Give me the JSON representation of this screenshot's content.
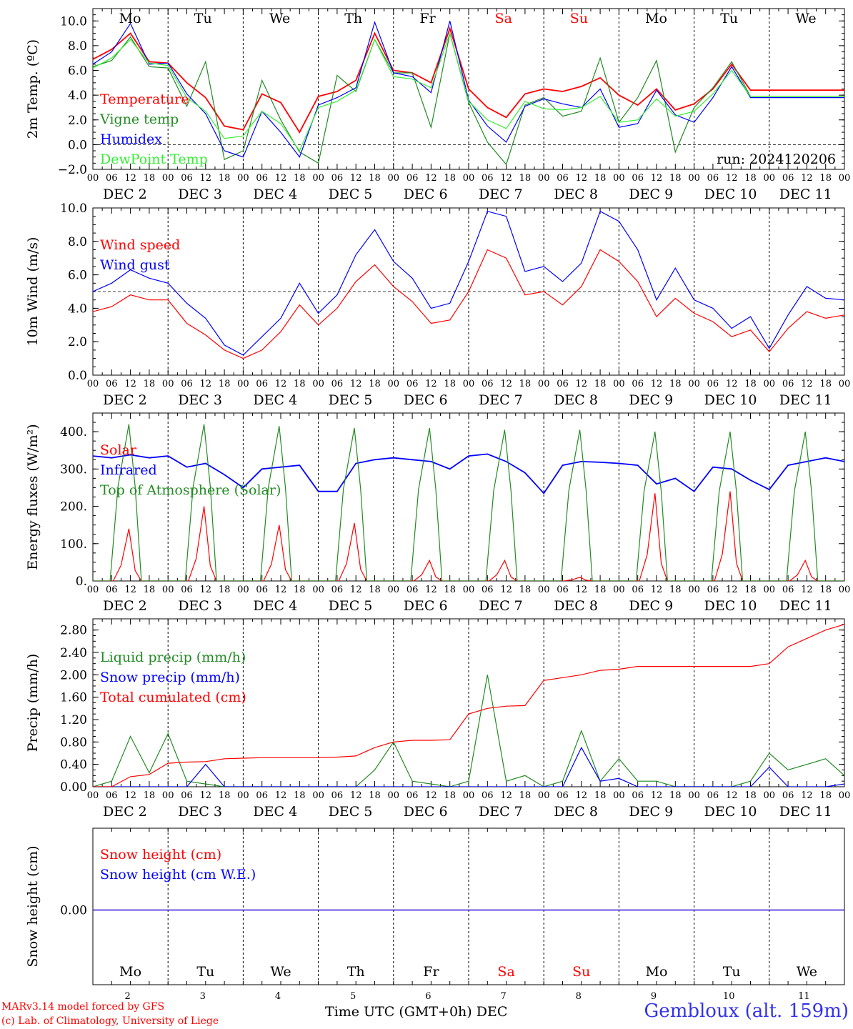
{
  "run_label": "run: 2024120206",
  "x_axis_title": "Time UTC (GMT+0h)",
  "month": "DEC",
  "credits": [
    "MARv3.14 model forced by GFS",
    "(c) Lab. of Climatology, University of Liege"
  ],
  "station": "Gembloux (alt. 159m)",
  "colors": {
    "red": "#ff0000",
    "dark_green": "#228b22",
    "blue": "#0000ff",
    "light_green": "#33ee33"
  },
  "days": [
    {
      "abbr": "Mo",
      "date": "2",
      "weekend": false
    },
    {
      "abbr": "Tu",
      "date": "3",
      "weekend": false
    },
    {
      "abbr": "We",
      "date": "4",
      "weekend": false
    },
    {
      "abbr": "Th",
      "date": "5",
      "weekend": false
    },
    {
      "abbr": "Fr",
      "date": "6",
      "weekend": false
    },
    {
      "abbr": "Sa",
      "date": "7",
      "weekend": true
    },
    {
      "abbr": "Su",
      "date": "8",
      "weekend": true
    },
    {
      "abbr": "Mo",
      "date": "9",
      "weekend": false
    },
    {
      "abbr": "Tu",
      "date": "10",
      "weekend": false
    },
    {
      "abbr": "We",
      "date": "11",
      "weekend": false
    }
  ],
  "hour_ticks": [
    "00",
    "06",
    "12",
    "18"
  ],
  "chart_data": [
    {
      "type": "line",
      "ylabel": "2m Temp. (ºC)",
      "ylim": [
        -2,
        11
      ],
      "yticks": [
        -2,
        0,
        2,
        4,
        6,
        8,
        10
      ],
      "ytick_labels": [
        "−2.0",
        "0.0",
        "2.0",
        "4.0",
        "6.0",
        "8.0",
        "10.0"
      ],
      "reference_line": 0,
      "x": [
        0,
        6,
        12,
        18,
        24,
        30,
        36,
        42,
        48,
        54,
        60,
        66,
        72,
        78,
        84,
        90,
        96,
        102,
        108,
        114,
        120,
        126,
        132,
        138,
        144,
        150,
        156,
        162,
        168,
        174,
        180,
        186,
        192,
        198,
        204,
        210,
        216,
        222,
        228,
        234,
        240
      ],
      "series": [
        {
          "name": "Temperature",
          "color": "#ff0000",
          "values": [
            6.9,
            7.7,
            9.0,
            6.7,
            6.6,
            5.0,
            3.8,
            1.5,
            1.2,
            4.1,
            3.4,
            1.0,
            3.9,
            4.3,
            5.2,
            9.0,
            6.0,
            5.8,
            5.0,
            9.4,
            4.5,
            3.0,
            2.2,
            4.1,
            4.5,
            4.3,
            4.7,
            5.4,
            4.0,
            3.2,
            4.5,
            2.8,
            3.3,
            4.5,
            6.5,
            4.4,
            4.4,
            4.4,
            4.4,
            4.4,
            4.4
          ]
        },
        {
          "name": "Vigne temp",
          "color": "#228b22",
          "values": [
            6.3,
            6.8,
            8.7,
            6.3,
            6.2,
            3.1,
            6.7,
            -1.2,
            -0.5,
            5.2,
            2.0,
            -0.6,
            -1.5,
            5.6,
            4.3,
            8.5,
            5.8,
            5.8,
            1.4,
            9.0,
            3.4,
            0.2,
            -1.6,
            3.2,
            3.8,
            2.3,
            2.7,
            7.0,
            1.8,
            3.8,
            6.8,
            -0.6,
            3.0,
            4.6,
            6.7,
            3.9,
            3.9,
            3.9,
            3.9,
            3.9,
            3.9
          ]
        },
        {
          "name": "Humidex",
          "color": "#0000ff",
          "values": [
            6.5,
            7.5,
            9.8,
            6.5,
            6.6,
            4.1,
            2.5,
            -0.5,
            -1.0,
            2.7,
            1.0,
            -1.0,
            3.2,
            3.8,
            4.6,
            9.9,
            5.8,
            5.5,
            4.2,
            10.0,
            3.6,
            1.5,
            0.2,
            3.1,
            3.7,
            3.3,
            3.0,
            4.5,
            1.4,
            1.7,
            4.4,
            2.4,
            1.8,
            3.8,
            6.3,
            3.8,
            3.8,
            3.8,
            3.8,
            3.8,
            3.8
          ]
        },
        {
          "name": "DewPoint Temp",
          "color": "#33ee33",
          "values": [
            6.2,
            7.0,
            8.5,
            6.6,
            6.4,
            3.8,
            2.7,
            0.5,
            0.7,
            2.7,
            1.7,
            -0.5,
            3.0,
            3.5,
            4.4,
            8.5,
            5.5,
            5.3,
            4.6,
            9.0,
            3.5,
            2.0,
            1.3,
            3.5,
            2.9,
            2.8,
            3.0,
            3.9,
            1.8,
            2.0,
            3.7,
            2.3,
            2.7,
            4.1,
            6.0,
            3.9,
            3.9,
            3.9,
            3.9,
            3.9,
            3.9
          ]
        }
      ]
    },
    {
      "type": "line",
      "ylabel": "10m Wind (m/s)",
      "ylim": [
        0,
        10
      ],
      "yticks": [
        0,
        2,
        4,
        6,
        8,
        10
      ],
      "ytick_labels": [
        "0.0",
        "2.0",
        "4.0",
        "6.0",
        "8.0",
        "10.0"
      ],
      "reference_line": 5,
      "x": [
        0,
        6,
        12,
        18,
        24,
        30,
        36,
        42,
        48,
        54,
        60,
        66,
        72,
        78,
        84,
        90,
        96,
        102,
        108,
        114,
        120,
        126,
        132,
        138,
        144,
        150,
        156,
        162,
        168,
        174,
        180,
        186,
        192,
        198,
        204,
        210,
        216,
        222,
        228,
        234,
        240
      ],
      "series": [
        {
          "name": "Wind speed",
          "color": "#ff0000",
          "values": [
            3.8,
            4.1,
            4.8,
            4.5,
            4.5,
            3.1,
            2.4,
            1.5,
            1.0,
            1.5,
            2.6,
            4.2,
            3.0,
            4.0,
            5.6,
            6.6,
            5.3,
            4.4,
            3.1,
            3.3,
            5.0,
            7.5,
            7.0,
            4.8,
            5.0,
            4.2,
            5.3,
            7.5,
            6.8,
            5.6,
            3.5,
            4.6,
            3.7,
            3.2,
            2.3,
            2.7,
            1.4,
            2.8,
            3.8,
            3.4,
            3.6
          ]
        },
        {
          "name": "Wind gust",
          "color": "#0000ff",
          "values": [
            5.0,
            5.5,
            6.3,
            5.8,
            5.5,
            4.3,
            3.4,
            1.8,
            1.2,
            2.3,
            3.4,
            5.5,
            3.7,
            4.8,
            7.2,
            8.7,
            6.8,
            5.8,
            4.0,
            4.3,
            6.8,
            9.8,
            9.5,
            6.2,
            6.5,
            5.6,
            6.7,
            9.8,
            9.2,
            7.5,
            4.5,
            6.4,
            4.5,
            4.0,
            2.8,
            3.5,
            1.6,
            3.6,
            5.3,
            4.6,
            4.5
          ]
        }
      ]
    },
    {
      "type": "line",
      "ylabel": "Energy fluxes (W/m²)",
      "ylim": [
        0,
        450
      ],
      "yticks": [
        0,
        100,
        200,
        300,
        400
      ],
      "ytick_labels": [
        "0.",
        "100.",
        "200.",
        "300.",
        "400."
      ],
      "series": [
        {
          "name": "Solar",
          "color": "#ff0000",
          "peaks": [
            140,
            200,
            150,
            155,
            55,
            55,
            10,
            235,
            240,
            55
          ]
        },
        {
          "name": "Infrared",
          "color": "#0000ff",
          "x": [
            0,
            6,
            12,
            18,
            24,
            30,
            36,
            42,
            48,
            54,
            60,
            66,
            72,
            78,
            84,
            90,
            96,
            102,
            108,
            114,
            120,
            126,
            132,
            138,
            144,
            150,
            156,
            162,
            168,
            174,
            180,
            186,
            192,
            198,
            204,
            210,
            216,
            222,
            228,
            234,
            240
          ],
          "values": [
            335,
            330,
            338,
            330,
            335,
            305,
            315,
            285,
            250,
            300,
            305,
            310,
            240,
            240,
            315,
            325,
            330,
            325,
            320,
            300,
            335,
            340,
            320,
            290,
            235,
            310,
            320,
            318,
            315,
            310,
            260,
            275,
            240,
            305,
            300,
            270,
            245,
            310,
            320,
            330,
            320
          ]
        },
        {
          "name": "Top of Atmosphere (Solar)",
          "color": "#228b22",
          "peaks": [
            420,
            420,
            415,
            410,
            410,
            405,
            405,
            400,
            400,
            400
          ]
        }
      ]
    },
    {
      "type": "line",
      "ylabel": "Precip (mm/h)",
      "ylim": [
        0,
        3.0
      ],
      "yticks": [
        0,
        0.4,
        0.8,
        1.2,
        1.6,
        2.0,
        2.4,
        2.8
      ],
      "ytick_labels": [
        "0.00",
        "0.40",
        "0.80",
        "1.20",
        "1.60",
        "2.00",
        "2.40",
        "2.80"
      ],
      "x": [
        0,
        6,
        12,
        18,
        24,
        30,
        36,
        42,
        48,
        54,
        60,
        66,
        72,
        78,
        84,
        90,
        96,
        102,
        108,
        114,
        120,
        126,
        132,
        138,
        144,
        150,
        156,
        162,
        168,
        174,
        180,
        186,
        192,
        198,
        204,
        210,
        216,
        222,
        228,
        234,
        240
      ],
      "series": [
        {
          "name": "Liquid precip (mm/h)",
          "color": "#228b22",
          "values": [
            0,
            0.1,
            0.9,
            0.25,
            0.95,
            0.1,
            0.05,
            0,
            0,
            0,
            0,
            0,
            0,
            0,
            0,
            0.3,
            0.8,
            0.1,
            0.05,
            0,
            0.1,
            2.0,
            0.1,
            0.2,
            0,
            0.1,
            1.0,
            0.1,
            0.5,
            0.1,
            0.1,
            0,
            0,
            0,
            0,
            0.1,
            0.6,
            0.3,
            0.4,
            0.5,
            0.2
          ]
        },
        {
          "name": "Snow precip (mm/h)",
          "color": "#0000ff",
          "values": [
            0,
            0,
            0,
            0,
            0,
            0,
            0.4,
            0,
            0,
            0,
            0,
            0,
            0,
            0,
            0,
            0,
            0,
            0,
            0,
            0,
            0,
            0,
            0,
            0,
            0,
            0,
            0.7,
            0.1,
            0.15,
            0,
            0,
            0,
            0,
            0,
            0,
            0,
            0.35,
            0,
            0,
            0,
            0.05
          ]
        },
        {
          "name": "Total cumulated (cm)",
          "color": "#ff0000",
          "values": [
            0,
            0,
            0.18,
            0.22,
            0.42,
            0.44,
            0.45,
            0.5,
            0.51,
            0.52,
            0.52,
            0.52,
            0.52,
            0.53,
            0.55,
            0.7,
            0.8,
            0.83,
            0.83,
            0.84,
            1.3,
            1.4,
            1.44,
            1.45,
            1.9,
            1.95,
            2.0,
            2.08,
            2.1,
            2.15,
            2.15,
            2.15,
            2.15,
            2.15,
            2.15,
            2.15,
            2.2,
            2.5,
            2.65,
            2.8,
            2.9
          ]
        }
      ]
    },
    {
      "type": "line",
      "ylabel": "Snow height (cm)",
      "yticks": [
        0
      ],
      "ytick_labels": [
        "0.00"
      ],
      "series": [
        {
          "name": "Snow height (cm)",
          "color": "#ff0000",
          "values": [
            0,
            0
          ]
        },
        {
          "name": "Snow height (cm W.E.)",
          "color": "#0000ff",
          "values": [
            0,
            0
          ]
        }
      ]
    }
  ]
}
